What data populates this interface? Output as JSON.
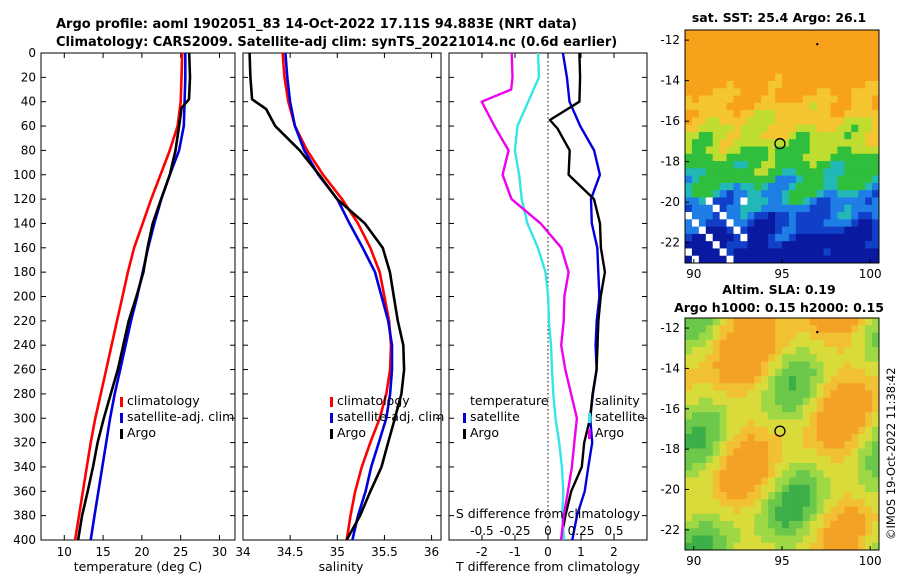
{
  "header": {
    "line1": "Argo profile: aoml 1902051_83 14-Oct-2022 17.11S 94.883E (NRT data)",
    "line2": "Climatology: CARS2009. Satellite-adj clim: synTS_20221014.nc (0.6d earlier)"
  },
  "copyright": "©IMOS 19-Oct-2022 11:38:42",
  "colors": {
    "climatology": "#ff0000",
    "satellite": "#0000dd",
    "argo": "#000000",
    "t_diff": "#33e6e6",
    "s_diff": "#ee00ee"
  },
  "chart_data": [
    {
      "id": "temperature",
      "type": "line",
      "xlabel": "temperature (deg C)",
      "ylabel": "",
      "xlim": [
        7,
        32
      ],
      "ylim": [
        400,
        0
      ],
      "xticks": [
        10,
        15,
        20,
        25,
        30
      ],
      "yticks": [
        0,
        20,
        40,
        60,
        80,
        100,
        120,
        140,
        160,
        180,
        200,
        220,
        240,
        260,
        280,
        300,
        320,
        340,
        360,
        380,
        400
      ],
      "legend": {
        "position": "lower-right",
        "entries": [
          {
            "label": "climatology",
            "color": "#ff0000"
          },
          {
            "label": "satellite-adj. clim",
            "color": "#0000dd"
          },
          {
            "label": "Argo",
            "color": "#000000"
          }
        ]
      },
      "series": [
        {
          "name": "climatology",
          "color": "#ff0000",
          "depth": [
            0,
            20,
            40,
            60,
            80,
            100,
            120,
            140,
            160,
            180,
            200,
            220,
            240,
            260,
            280,
            300,
            320,
            340,
            360,
            380,
            400
          ],
          "values": [
            25.2,
            25.1,
            25.0,
            24.6,
            23.6,
            22.4,
            21.2,
            20.1,
            19.0,
            18.2,
            17.5,
            16.8,
            16.1,
            15.4,
            14.7,
            14.0,
            13.4,
            12.9,
            12.4,
            11.9,
            11.4
          ]
        },
        {
          "name": "satellite-adj. clim",
          "color": "#0000dd",
          "depth": [
            0,
            20,
            40,
            60,
            80,
            100,
            120,
            140,
            160,
            180,
            200,
            220,
            240,
            260,
            280,
            300,
            320,
            340,
            360,
            380,
            400
          ],
          "values": [
            25.6,
            25.6,
            25.5,
            25.4,
            24.8,
            23.6,
            22.5,
            21.6,
            20.8,
            20.1,
            19.4,
            18.6,
            17.9,
            17.2,
            16.5,
            15.9,
            15.4,
            14.9,
            14.4,
            13.9,
            13.4
          ]
        },
        {
          "name": "Argo",
          "color": "#000000",
          "depth": [
            0,
            20,
            38,
            45,
            60,
            80,
            100,
            120,
            140,
            160,
            180,
            200,
            220,
            240,
            260,
            280,
            300,
            320,
            340,
            360,
            380,
            400
          ],
          "values": [
            26.1,
            26.1,
            26.0,
            25.2,
            24.9,
            24.3,
            23.5,
            22.5,
            21.5,
            20.7,
            20.1,
            19.3,
            18.4,
            17.6,
            16.8,
            16.0,
            15.2,
            14.3,
            13.6,
            13.0,
            12.4,
            11.8
          ]
        }
      ]
    },
    {
      "id": "salinity",
      "type": "line",
      "xlabel": "salinity",
      "ylabel": "",
      "xlim": [
        34,
        36.1
      ],
      "ylim": [
        400,
        0
      ],
      "xticks": [
        34,
        34.5,
        35,
        35.5,
        36
      ],
      "legend": {
        "position": "lower-right",
        "entries": [
          {
            "label": "climatology",
            "color": "#ff0000"
          },
          {
            "label": "satellite-adj. clim",
            "color": "#0000dd"
          },
          {
            "label": "Argo",
            "color": "#000000"
          }
        ]
      },
      "series": [
        {
          "name": "climatology",
          "color": "#ff0000",
          "depth": [
            0,
            20,
            40,
            60,
            80,
            100,
            120,
            140,
            160,
            180,
            200,
            220,
            240,
            260,
            280,
            300,
            320,
            340,
            360,
            380,
            400
          ],
          "values": [
            34.42,
            34.44,
            34.48,
            34.55,
            34.68,
            34.85,
            35.05,
            35.22,
            35.35,
            35.45,
            35.5,
            35.55,
            35.57,
            35.56,
            35.52,
            35.45,
            35.35,
            35.26,
            35.19,
            35.14,
            35.1
          ]
        },
        {
          "name": "satellite-adj. clim",
          "color": "#0000dd",
          "depth": [
            0,
            20,
            40,
            60,
            80,
            100,
            120,
            140,
            160,
            180,
            200,
            220,
            240,
            260,
            280,
            300,
            320,
            340,
            360,
            380,
            400
          ],
          "values": [
            34.45,
            34.47,
            34.5,
            34.55,
            34.65,
            34.8,
            35.0,
            35.13,
            35.27,
            35.4,
            35.47,
            35.54,
            35.58,
            35.58,
            35.56,
            35.52,
            35.44,
            35.36,
            35.3,
            35.22,
            35.16
          ]
        },
        {
          "name": "Argo",
          "color": "#000000",
          "depth": [
            0,
            20,
            38,
            46,
            60,
            80,
            100,
            120,
            140,
            160,
            180,
            200,
            220,
            240,
            260,
            280,
            300,
            320,
            340,
            360,
            380,
            400
          ],
          "values": [
            34.07,
            34.07,
            34.09,
            34.25,
            34.35,
            34.6,
            34.8,
            35.0,
            35.3,
            35.48,
            35.55,
            35.6,
            35.65,
            35.7,
            35.7,
            35.68,
            35.62,
            35.54,
            35.46,
            35.35,
            35.25,
            35.1
          ]
        }
      ]
    },
    {
      "id": "difference",
      "type": "line",
      "xlabel": "T difference from climatology",
      "xlabel2": "S difference from climatology",
      "xlim": [
        -3,
        3
      ],
      "ylim": [
        400,
        0
      ],
      "xticks": [
        -2,
        -1,
        0,
        1,
        2
      ],
      "xticks2": [
        -0.5,
        -0.25,
        0,
        0.25,
        0.5
      ],
      "xticks2_labels": [
        "-0.5",
        "-0.25",
        "0",
        "0.25",
        "0.5"
      ],
      "legend": {
        "position": "lower-center",
        "groups": [
          {
            "heading": "temperature",
            "entries": [
              {
                "label": "satellite",
                "color": "#0000dd"
              },
              {
                "label": "Argo",
                "color": "#000000"
              }
            ]
          },
          {
            "heading": "salinity",
            "entries": [
              {
                "label": "satellite",
                "color": "#33e6e6"
              },
              {
                "label": "Argo",
                "color": "#ee00ee"
              }
            ]
          }
        ]
      },
      "series": [
        {
          "name": "T satellite",
          "color": "#0000dd",
          "depth": [
            0,
            20,
            40,
            60,
            80,
            100,
            120,
            140,
            160,
            180,
            200,
            220,
            240,
            260,
            280,
            300,
            320,
            340,
            360,
            380,
            400
          ],
          "values": [
            0.45,
            0.55,
            0.65,
            1.0,
            1.4,
            1.55,
            1.3,
            1.35,
            1.5,
            1.5,
            1.55,
            1.5,
            1.45,
            1.45,
            1.35,
            1.3,
            1.35,
            1.2,
            1.1,
            0.9,
            0.75
          ]
        },
        {
          "name": "T Argo",
          "color": "#000000",
          "depth": [
            0,
            20,
            40,
            55,
            62,
            80,
            100,
            120,
            140,
            160,
            180,
            200,
            220,
            240,
            260,
            280,
            300,
            320,
            340,
            360,
            380,
            400
          ],
          "values": [
            0.95,
            0.95,
            0.95,
            0.05,
            0.3,
            0.65,
            0.6,
            1.4,
            1.6,
            1.6,
            1.7,
            1.6,
            1.55,
            1.5,
            1.45,
            1.35,
            1.3,
            1.1,
            1.0,
            0.7,
            0.55,
            0.4
          ]
        },
        {
          "name": "S satellite",
          "color": "#33e6e6",
          "depth": [
            0,
            20,
            40,
            60,
            80,
            100,
            120,
            140,
            160,
            180,
            200,
            220,
            240,
            260,
            280,
            300,
            320,
            340,
            360,
            380,
            400
          ],
          "values": [
            -0.3,
            -0.3,
            -0.6,
            -0.9,
            -1.0,
            -0.9,
            -0.8,
            -0.6,
            -0.3,
            -0.1,
            0.0,
            0.05,
            0.1,
            0.1,
            0.15,
            0.25,
            0.35,
            0.4,
            0.45,
            0.45,
            0.5
          ]
        },
        {
          "name": "S Argo",
          "color": "#ee00ee",
          "depth": [
            0,
            20,
            30,
            40,
            60,
            80,
            100,
            120,
            140,
            160,
            180,
            200,
            220,
            240,
            260,
            280,
            300,
            320,
            340,
            360,
            380,
            400
          ],
          "values": [
            -1.1,
            -1.1,
            -1.1,
            -2.0,
            -1.6,
            -1.2,
            -1.4,
            -1.1,
            -0.2,
            0.4,
            0.6,
            0.5,
            0.5,
            0.4,
            0.5,
            0.7,
            0.9,
            0.8,
            0.7,
            0.6,
            0.5,
            0.4
          ]
        }
      ]
    },
    {
      "id": "sst_map",
      "type": "heatmap",
      "title": "sat. SST: 25.4 Argo: 26.1",
      "xlim": [
        89.5,
        100.5
      ],
      "ylim": [
        -23,
        -11.5
      ],
      "xticks": [
        90,
        95,
        100
      ],
      "yticks": [
        -12,
        -14,
        -16,
        -18,
        -20,
        -22
      ],
      "float_position": {
        "lon": 94.883,
        "lat": -17.11
      }
    },
    {
      "id": "sla_map",
      "type": "heatmap",
      "title": "Altim. SLA: 0.19",
      "subtitle": "Argo h1000: 0.15 h2000: 0.15",
      "xlim": [
        89.5,
        100.5
      ],
      "ylim": [
        -23,
        -11.5
      ],
      "xticks": [
        90,
        95,
        100
      ],
      "yticks": [
        -12,
        -14,
        -16,
        -18,
        -20,
        -22
      ],
      "float_position": {
        "lon": 94.883,
        "lat": -17.11
      }
    }
  ]
}
